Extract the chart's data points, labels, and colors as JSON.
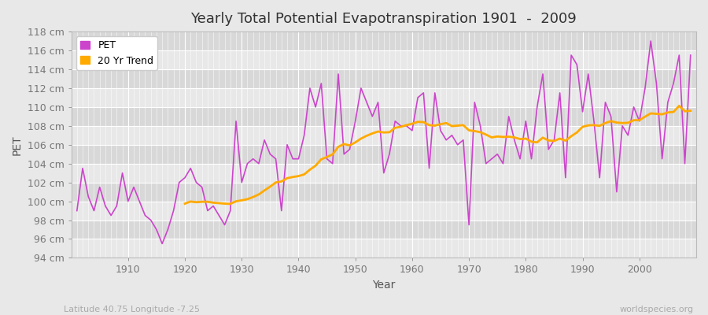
{
  "title": "Yearly Total Potential Evapotranspiration 1901  -  2009",
  "xlabel": "Year",
  "ylabel": "PET",
  "subtitle_left": "Latitude 40.75 Longitude -7.25",
  "subtitle_right": "worldspecies.org",
  "years": [
    1901,
    1902,
    1903,
    1904,
    1905,
    1906,
    1907,
    1908,
    1909,
    1910,
    1911,
    1912,
    1913,
    1914,
    1915,
    1916,
    1917,
    1918,
    1919,
    1920,
    1921,
    1922,
    1923,
    1924,
    1925,
    1926,
    1927,
    1928,
    1929,
    1930,
    1931,
    1932,
    1933,
    1934,
    1935,
    1936,
    1937,
    1938,
    1939,
    1940,
    1941,
    1942,
    1943,
    1944,
    1945,
    1946,
    1947,
    1948,
    1949,
    1950,
    1951,
    1952,
    1953,
    1954,
    1955,
    1956,
    1957,
    1958,
    1959,
    1960,
    1961,
    1962,
    1963,
    1964,
    1965,
    1966,
    1967,
    1968,
    1969,
    1970,
    1971,
    1972,
    1973,
    1974,
    1975,
    1976,
    1977,
    1978,
    1979,
    1980,
    1981,
    1982,
    1983,
    1984,
    1985,
    1986,
    1987,
    1988,
    1989,
    1990,
    1991,
    1992,
    1993,
    1994,
    1995,
    1996,
    1997,
    1998,
    1999,
    2000,
    2001,
    2002,
    2003,
    2004,
    2005,
    2006,
    2007,
    2008,
    2009
  ],
  "pet": [
    99.0,
    103.5,
    100.5,
    99.0,
    101.5,
    99.5,
    98.5,
    99.5,
    103.0,
    100.0,
    101.5,
    100.0,
    98.5,
    98.0,
    97.0,
    95.5,
    97.0,
    99.0,
    102.0,
    102.5,
    103.5,
    102.0,
    101.5,
    99.0,
    99.5,
    98.5,
    97.5,
    99.0,
    108.5,
    102.0,
    104.0,
    104.5,
    104.0,
    106.5,
    105.0,
    104.5,
    99.0,
    106.0,
    104.5,
    104.5,
    107.0,
    112.0,
    110.0,
    112.5,
    104.5,
    104.0,
    113.5,
    105.0,
    105.5,
    108.5,
    112.0,
    110.5,
    109.0,
    110.5,
    103.0,
    105.0,
    108.5,
    108.0,
    108.0,
    107.5,
    111.0,
    111.5,
    103.5,
    111.5,
    107.5,
    106.5,
    107.0,
    106.0,
    106.5,
    97.5,
    110.5,
    108.0,
    104.0,
    104.5,
    105.0,
    104.0,
    109.0,
    106.5,
    104.5,
    108.5,
    104.5,
    110.0,
    113.5,
    105.5,
    106.5,
    111.5,
    102.5,
    115.5,
    114.5,
    109.5,
    113.5,
    108.5,
    102.5,
    110.5,
    109.0,
    101.0,
    108.0,
    107.0,
    110.0,
    108.5,
    112.0,
    117.0,
    112.5,
    104.5,
    110.5,
    112.5,
    115.5,
    104.0,
    115.5
  ],
  "pet_color": "#cc44cc",
  "trend_color": "#ffaa00",
  "bg_color": "#e8e8e8",
  "plot_bg_light": "#e8e8e8",
  "plot_bg_dark": "#d8d8d8",
  "grid_color": "#ffffff",
  "ylim": [
    94,
    118
  ],
  "yticks": [
    94,
    96,
    98,
    100,
    102,
    104,
    106,
    108,
    110,
    112,
    114,
    116,
    118
  ],
  "trend_window": 20,
  "title_fontsize": 13,
  "axis_label_fontsize": 10,
  "tick_fontsize": 9
}
